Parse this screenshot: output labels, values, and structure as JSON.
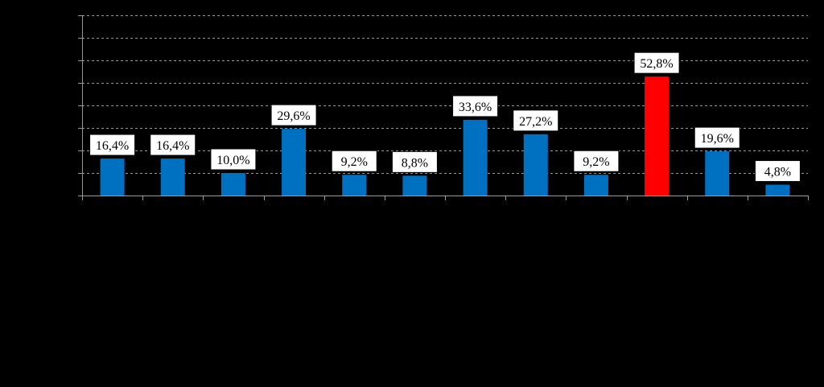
{
  "chart_data": {
    "type": "bar",
    "categories": [
      "",
      "",
      "",
      "",
      "",
      "",
      "",
      "",
      "",
      "",
      "",
      ""
    ],
    "values": [
      16.4,
      16.4,
      10.0,
      29.6,
      9.2,
      8.8,
      33.6,
      27.2,
      9.2,
      52.8,
      19.6,
      4.8
    ],
    "value_labels": [
      "16,4%",
      "16,4%",
      "10,0%",
      "29,6%",
      "9,2%",
      "8,8%",
      "33,6%",
      "27,2%",
      "9,2%",
      "52,8%",
      "19,6%",
      "4,8%"
    ],
    "highlight_index": 9,
    "ylim": [
      0,
      80
    ],
    "y_tick_step": 10,
    "grid": true,
    "title": "",
    "xlabel": "",
    "ylabel": "",
    "colors": {
      "bar": "#0070C0",
      "highlight": "#FF0000",
      "background": "#000000"
    }
  }
}
